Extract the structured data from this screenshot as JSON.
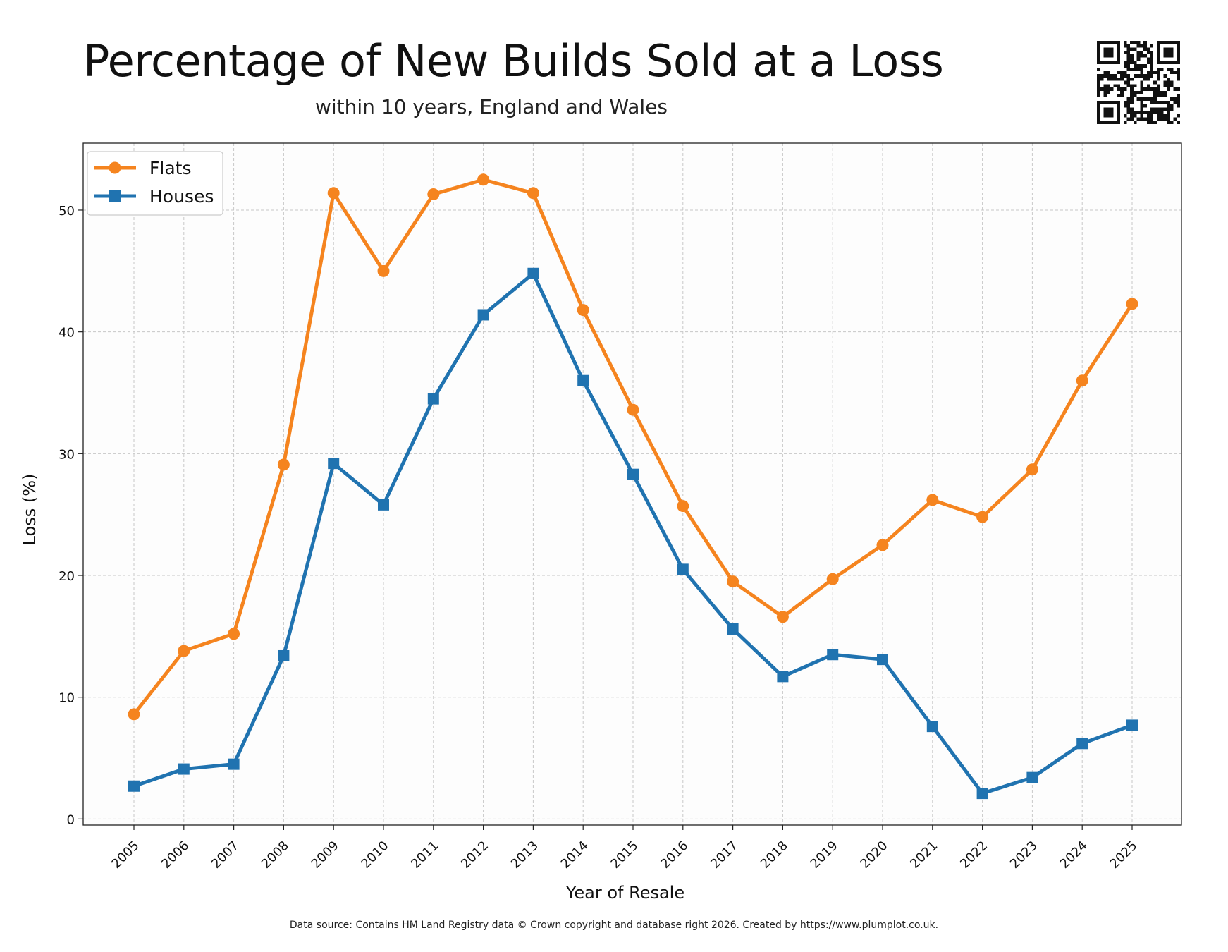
{
  "title": "Percentage of New Builds Sold at a Loss",
  "subtitle": "within 10 years, England and Wales",
  "footer": "Data source: Contains HM Land Registry data © Crown copyright and database right 2026. Created by https://www.plumplot.co.uk.",
  "qr_icon": "qr-code-icon",
  "colors": {
    "flats": "#f5841f",
    "houses": "#2073b0",
    "grid": "#c8c8c8",
    "frame": "#222222"
  },
  "chart_data": {
    "type": "line",
    "xlabel": "Year of Resale",
    "ylabel": "Loss (%)",
    "ylim": [
      -0.5,
      55.5
    ],
    "yticks": [
      0,
      10,
      20,
      30,
      40,
      50
    ],
    "grid": true,
    "legend_position": "top-left",
    "categories": [
      "2005",
      "2006",
      "2007",
      "2008",
      "2009",
      "2010",
      "2011",
      "2012",
      "2013",
      "2014",
      "2015",
      "2016",
      "2017",
      "2018",
      "2019",
      "2020",
      "2021",
      "2022",
      "2023",
      "2024",
      "2025"
    ],
    "series": [
      {
        "name": "Flats",
        "marker": "circle",
        "values": [
          8.6,
          13.8,
          15.2,
          29.1,
          51.4,
          45.0,
          51.3,
          52.5,
          51.4,
          41.8,
          33.6,
          25.7,
          19.5,
          16.6,
          19.7,
          22.5,
          26.2,
          24.8,
          28.7,
          36.0,
          42.3
        ]
      },
      {
        "name": "Houses",
        "marker": "square",
        "values": [
          2.7,
          4.1,
          4.5,
          13.4,
          29.2,
          25.8,
          34.5,
          41.4,
          44.8,
          36.0,
          28.3,
          20.5,
          15.6,
          11.7,
          13.5,
          13.1,
          7.6,
          2.1,
          3.4,
          6.2,
          7.7
        ]
      }
    ]
  }
}
